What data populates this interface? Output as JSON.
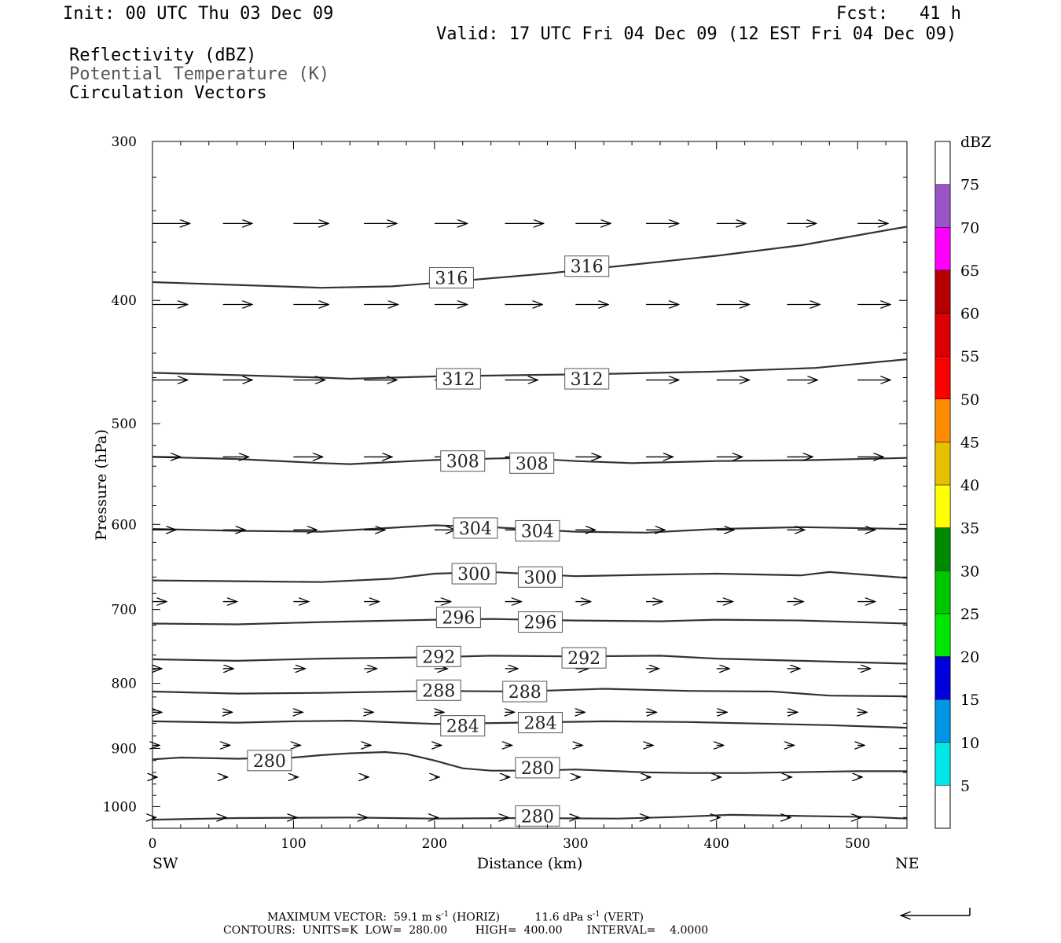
{
  "header": {
    "init": "Init: 00 UTC Thu 03 Dec 09",
    "fcst": "Fcst:   41 h",
    "valid": "Valid: 17 UTC Fri 04 Dec 09 (12 EST Fri 04 Dec 09)",
    "fields": [
      "Reflectivity (dBZ)",
      "Potential Temperature (K)",
      "Circulation Vectors"
    ]
  },
  "chart_data": {
    "type": "line",
    "xlabel": "Distance (km)",
    "ylabel": "Pressure (hPa)",
    "xlim": [
      0,
      535
    ],
    "ylim": [
      1040,
      300
    ],
    "y_scale": "log",
    "x_ticks": [
      0,
      100,
      200,
      300,
      400,
      500
    ],
    "y_ticks": [
      300,
      400,
      500,
      600,
      700,
      800,
      900,
      1000
    ],
    "left_end_label": "SW",
    "right_end_label": "NE",
    "contour_series": [
      {
        "level": 316,
        "points": [
          [
            0,
            387
          ],
          [
            60,
            389
          ],
          [
            120,
            391
          ],
          [
            170,
            390
          ],
          [
            220,
            386
          ],
          [
            280,
            381
          ],
          [
            340,
            375
          ],
          [
            400,
            369
          ],
          [
            460,
            362
          ],
          [
            535,
            350
          ]
        ],
        "labels": [
          [
            212,
            384
          ],
          [
            308,
            376
          ]
        ]
      },
      {
        "level": 312,
        "points": [
          [
            0,
            456
          ],
          [
            60,
            458
          ],
          [
            120,
            460
          ],
          [
            140,
            461
          ],
          [
            200,
            459
          ],
          [
            260,
            458
          ],
          [
            320,
            457
          ],
          [
            400,
            455
          ],
          [
            470,
            452
          ],
          [
            535,
            445
          ]
        ],
        "labels": [
          [
            217,
            461
          ],
          [
            308,
            461
          ]
        ]
      },
      {
        "level": 308,
        "points": [
          [
            0,
            531
          ],
          [
            60,
            533
          ],
          [
            120,
            537
          ],
          [
            140,
            538
          ],
          [
            200,
            534
          ],
          [
            260,
            532
          ],
          [
            300,
            535
          ],
          [
            340,
            537
          ],
          [
            400,
            535
          ],
          [
            470,
            534
          ],
          [
            535,
            532
          ]
        ],
        "labels": [
          [
            220,
            535
          ],
          [
            269,
            537
          ]
        ]
      },
      {
        "level": 304,
        "points": [
          [
            0,
            605
          ],
          [
            60,
            607
          ],
          [
            120,
            608
          ],
          [
            200,
            601
          ],
          [
            240,
            603
          ],
          [
            300,
            608
          ],
          [
            350,
            609
          ],
          [
            400,
            605
          ],
          [
            460,
            603
          ],
          [
            535,
            605
          ]
        ],
        "labels": [
          [
            229,
            604
          ],
          [
            273,
            607
          ]
        ]
      },
      {
        "level": 300,
        "points": [
          [
            0,
            664
          ],
          [
            60,
            665
          ],
          [
            120,
            666
          ],
          [
            170,
            662
          ],
          [
            200,
            656
          ],
          [
            240,
            654
          ],
          [
            300,
            659
          ],
          [
            360,
            657
          ],
          [
            400,
            656
          ],
          [
            460,
            658
          ],
          [
            480,
            654
          ],
          [
            535,
            661
          ]
        ],
        "labels": [
          [
            228,
            656
          ],
          [
            275,
            660
          ]
        ]
      },
      {
        "level": 296,
        "points": [
          [
            0,
            718
          ],
          [
            60,
            719
          ],
          [
            120,
            716
          ],
          [
            200,
            713
          ],
          [
            240,
            712
          ],
          [
            300,
            714
          ],
          [
            360,
            715
          ],
          [
            400,
            713
          ],
          [
            460,
            714
          ],
          [
            535,
            718
          ]
        ],
        "labels": [
          [
            217,
            710
          ],
          [
            275,
            716
          ]
        ]
      },
      {
        "level": 292,
        "points": [
          [
            0,
            766
          ],
          [
            60,
            768
          ],
          [
            120,
            765
          ],
          [
            200,
            763
          ],
          [
            240,
            761
          ],
          [
            300,
            762
          ],
          [
            360,
            761
          ],
          [
            400,
            765
          ],
          [
            460,
            768
          ],
          [
            535,
            772
          ]
        ],
        "labels": [
          [
            203,
            762
          ],
          [
            306,
            764
          ]
        ]
      },
      {
        "level": 288,
        "points": [
          [
            0,
            812
          ],
          [
            60,
            815
          ],
          [
            120,
            814
          ],
          [
            200,
            811
          ],
          [
            260,
            812
          ],
          [
            320,
            808
          ],
          [
            380,
            811
          ],
          [
            440,
            812
          ],
          [
            480,
            818
          ],
          [
            535,
            819
          ]
        ],
        "labels": [
          [
            203,
            810
          ],
          [
            264,
            812
          ]
        ]
      },
      {
        "level": 284,
        "points": [
          [
            0,
            857
          ],
          [
            60,
            859
          ],
          [
            100,
            857
          ],
          [
            140,
            856
          ],
          [
            200,
            861
          ],
          [
            260,
            859
          ],
          [
            320,
            857
          ],
          [
            380,
            858
          ],
          [
            440,
            861
          ],
          [
            480,
            863
          ],
          [
            535,
            867
          ]
        ],
        "labels": [
          [
            220,
            864
          ],
          [
            275,
            859
          ]
        ]
      },
      {
        "level": 280,
        "points": [
          [
            0,
            918
          ],
          [
            20,
            915
          ],
          [
            60,
            917
          ],
          [
            100,
            915
          ],
          [
            120,
            911
          ],
          [
            140,
            908
          ],
          [
            165,
            906
          ],
          [
            180,
            909
          ],
          [
            200,
            920
          ],
          [
            220,
            933
          ],
          [
            240,
            937
          ],
          [
            270,
            937
          ],
          [
            300,
            935
          ],
          [
            330,
            938
          ],
          [
            350,
            940
          ],
          [
            380,
            941
          ],
          [
            420,
            941
          ],
          [
            470,
            939
          ],
          [
            500,
            938
          ],
          [
            535,
            938
          ]
        ],
        "labels": [
          [
            83,
            920
          ],
          [
            273,
            932
          ]
        ]
      },
      {
        "level": 280,
        "points": [
          [
            0,
            1024
          ],
          [
            60,
            1021
          ],
          [
            140,
            1020
          ],
          [
            200,
            1022
          ],
          [
            260,
            1021
          ],
          [
            330,
            1022
          ],
          [
            370,
            1019
          ],
          [
            410,
            1015
          ],
          [
            460,
            1017
          ],
          [
            510,
            1019
          ],
          [
            535,
            1022
          ]
        ],
        "labels": [
          [
            273,
            1017
          ]
        ]
      }
    ],
    "vectors": {
      "pressure_levels": [
        348,
        403,
        462,
        531,
        606,
        690,
        779,
        843,
        895,
        948,
        1020
      ],
      "x_positions": [
        0,
        50,
        100,
        150,
        200,
        250,
        300,
        350,
        400,
        450,
        500
      ],
      "u": [
        [
          32,
          25,
          30,
          28,
          28,
          33,
          30,
          28,
          25,
          25,
          26
        ],
        [
          30,
          25,
          30,
          29,
          28,
          32,
          28,
          28,
          28,
          28,
          28
        ],
        [
          30,
          25,
          27,
          28,
          26,
          28,
          27,
          28,
          28,
          26,
          28
        ],
        [
          24,
          22,
          25,
          24,
          22,
          22,
          22,
          23,
          22,
          22,
          22
        ],
        [
          20,
          19,
          20,
          18,
          18,
          17,
          17,
          16,
          15,
          15,
          15
        ],
        [
          12,
          12,
          13,
          13,
          14,
          14,
          13,
          14,
          14,
          14,
          15
        ],
        [
          8,
          9,
          10,
          11,
          11,
          11,
          11,
          11,
          11,
          11,
          11
        ],
        [
          8,
          8,
          8,
          8,
          8,
          8,
          8,
          9,
          9,
          9,
          8
        ],
        [
          6,
          6,
          6,
          6,
          6,
          6,
          6,
          6,
          6,
          6,
          6
        ],
        [
          4,
          4,
          4,
          4,
          4,
          4,
          4,
          4,
          4,
          4,
          4
        ],
        [
          3,
          3,
          3,
          3,
          3,
          3,
          3,
          3,
          3,
          3,
          3
        ]
      ]
    },
    "colorbar": {
      "units": "dBZ",
      "labels": [
        "5",
        "10",
        "15",
        "20",
        "25",
        "30",
        "35",
        "40",
        "45",
        "50",
        "55",
        "60",
        "65",
        "70",
        "75"
      ],
      "colors": [
        "#00e5e5",
        "#0096e6",
        "#0000dc",
        "#00e600",
        "#00c800",
        "#008a00",
        "#ffff00",
        "#e6c000",
        "#ff8c00",
        "#ff0000",
        "#dc0000",
        "#b40000",
        "#ff00ff",
        "#9955c8"
      ]
    }
  },
  "footer": {
    "line1_prefix": "MAXIMUM VECTOR:  59.1 m s",
    "line1_exp1": "-1",
    "line1_mid": " (HORIZ)          11.6 dPa s",
    "line1_exp2": "-1",
    "line1_suffix": " (VERT)",
    "line2": "CONTOURS:  UNITS=K  LOW=  280.00        HIGH=  400.00       INTERVAL=    4.0000"
  }
}
